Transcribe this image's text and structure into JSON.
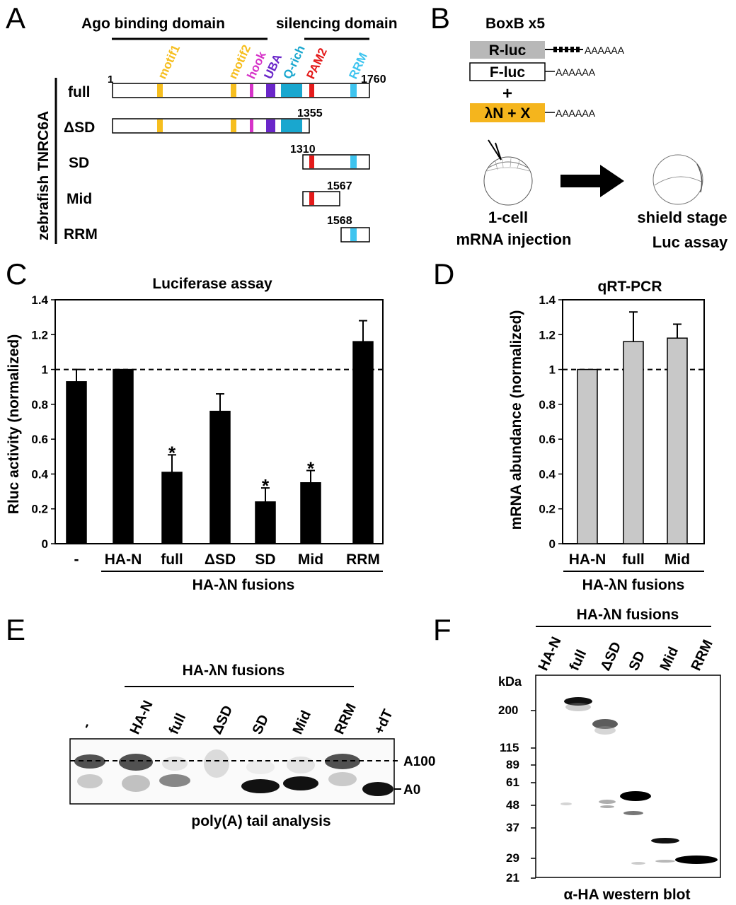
{
  "panels": {
    "A": "A",
    "B": "B",
    "C": "C",
    "D": "D",
    "E": "E",
    "F": "F"
  },
  "panel_a": {
    "ago_binding_label": "Ago binding domain",
    "silencing_label": "silencing domain",
    "vertical_label": "zebrafish TNRC6A",
    "domain_labels": [
      {
        "text": "motif1",
        "color": "#f6be1e"
      },
      {
        "text": "motif2",
        "color": "#f6be1e"
      },
      {
        "text": "hook",
        "color": "#d633c8"
      },
      {
        "text": "UBA",
        "color": "#6a26c9"
      },
      {
        "text": "Q-rich",
        "color": "#19a7cf"
      },
      {
        "text": "PAM2",
        "color": "#e41a1a"
      },
      {
        "text": "RRM",
        "color": "#3ec4ef"
      }
    ],
    "constructs": [
      {
        "name": "full",
        "start_label": "1",
        "end_label": "1760"
      },
      {
        "name": "ΔSD",
        "end_label": "1355"
      },
      {
        "name": "SD",
        "start_label": "1310"
      },
      {
        "name": "Mid",
        "end_label": "1567"
      },
      {
        "name": "RRM",
        "start_label": "1568"
      }
    ]
  },
  "panel_b": {
    "title": "BoxB x5",
    "rluc": "R-luc",
    "fluc": "F-luc",
    "plus": "+",
    "lambda": "λN + X",
    "polyA": "AAAAAA",
    "left_caption_1": "1-cell",
    "left_caption_2": "mRNA injection",
    "right_caption_1": "shield stage",
    "right_caption_2": "Luc assay",
    "box_gray": "#b8b8b8",
    "box_orange": "#f5b51d"
  },
  "chart_data": [
    {
      "panel": "C",
      "type": "bar",
      "title": "Luciferase assay",
      "ylabel": "Rluc activity (normalized)",
      "categories": [
        "-",
        "HA-N",
        "full",
        "ΔSD",
        "SD",
        "Mid",
        "RRM"
      ],
      "values": [
        0.93,
        1.0,
        0.41,
        0.76,
        0.24,
        0.35,
        1.16
      ],
      "errors": [
        0.07,
        0.0,
        0.1,
        0.1,
        0.08,
        0.07,
        0.12
      ],
      "significant": [
        false,
        false,
        true,
        false,
        true,
        true,
        false
      ],
      "star": "*",
      "ylim": [
        0,
        1.4
      ],
      "yticks": [
        "0",
        "0.2",
        "0.4",
        "0.6",
        "0.8",
        "1",
        "1.2",
        "1.4"
      ],
      "reference_line": 1,
      "group_label": "HA-λN fusions",
      "bar_color": "#000000"
    },
    {
      "panel": "D",
      "type": "bar",
      "title": "qRT-PCR",
      "ylabel": "mRNA abundance (normalized)",
      "categories": [
        "HA-N",
        "full",
        "Mid"
      ],
      "values": [
        1.0,
        1.16,
        1.18
      ],
      "errors": [
        0.0,
        0.17,
        0.08
      ],
      "ylim": [
        0,
        1.4
      ],
      "yticks": [
        "0",
        "0.2",
        "0.4",
        "0.6",
        "0.8",
        "1",
        "1.2",
        "1.4"
      ],
      "reference_line": 1,
      "group_label": "HA-λN fusions",
      "bar_color": "#c8c8c8"
    }
  ],
  "panel_e": {
    "group_label": "HA-λN fusions",
    "lanes": [
      "-",
      "HA-N",
      "full",
      "ΔSD",
      "SD",
      "Mid",
      "RRM",
      "+dT"
    ],
    "markers": [
      "A100",
      "A0"
    ],
    "caption": "poly(A) tail analysis"
  },
  "panel_f": {
    "group_label": "HA-λN fusions",
    "lanes": [
      "HA-N",
      "full",
      "ΔSD",
      "SD",
      "Mid",
      "RRM"
    ],
    "kda_label": "kDa",
    "markers": [
      "200",
      "115",
      "89",
      "61",
      "48",
      "37",
      "29",
      "21"
    ],
    "caption": "α-HA western blot"
  }
}
